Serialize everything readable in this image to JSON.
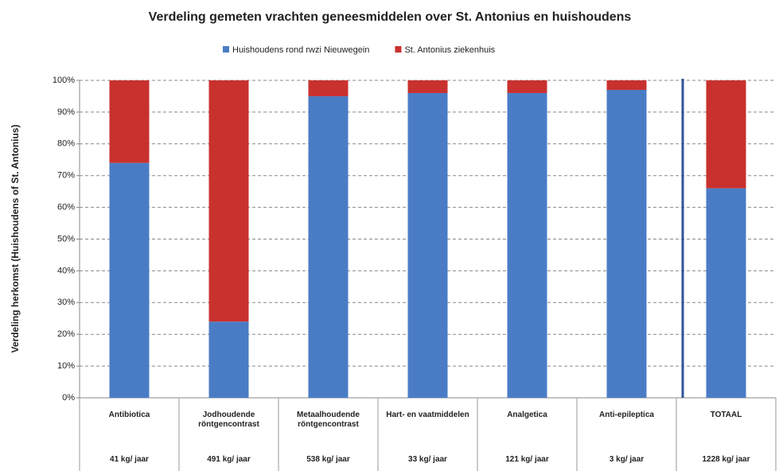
{
  "chart_data": {
    "type": "stacked_bar_100",
    "title": "Verdeling gemeten vrachten geneesmiddelen over St. Antonius en huishoudens",
    "y_label": "Verdeling herkomst (Huishoudens of St. Antonius)",
    "categories": [
      "Antibiotica",
      "Jodhoudende röntgencontrast",
      "Metaalhoudende röntgencontrast",
      "Hart- en vaatmiddelen",
      "Analgetica",
      "Anti-epileptica",
      "TOTAAL"
    ],
    "category_notes": [
      "41 kg/ jaar",
      "491 kg/ jaar",
      "538 kg/ jaar",
      "33 kg/ jaar",
      "121 kg/ jaar",
      "3 kg/ jaar",
      "1228 kg/ jaar"
    ],
    "series": [
      {
        "name": "Huishoudens rond rwzi Nieuwegein",
        "color": "#4a7cc6",
        "values": [
          74,
          24,
          95,
          96,
          96,
          97,
          66
        ]
      },
      {
        "name": "St. Antonius ziekenhuis",
        "color": "#c8312e",
        "values": [
          26,
          76,
          5,
          4,
          4,
          3,
          34
        ]
      }
    ],
    "ylim": [
      0,
      100
    ],
    "yticks": [
      {
        "value": 0,
        "label": "0%"
      },
      {
        "value": 10,
        "label": "10%"
      },
      {
        "value": 20,
        "label": "20%"
      },
      {
        "value": 30,
        "label": "30%"
      },
      {
        "value": 40,
        "label": "40%"
      },
      {
        "value": 50,
        "label": "50%"
      },
      {
        "value": 60,
        "label": "60%"
      },
      {
        "value": 70,
        "label": "70%"
      },
      {
        "value": 80,
        "label": "80%"
      },
      {
        "value": 90,
        "label": "90%"
      },
      {
        "value": 100,
        "label": "100%"
      }
    ],
    "grid": true,
    "legend": "top"
  }
}
